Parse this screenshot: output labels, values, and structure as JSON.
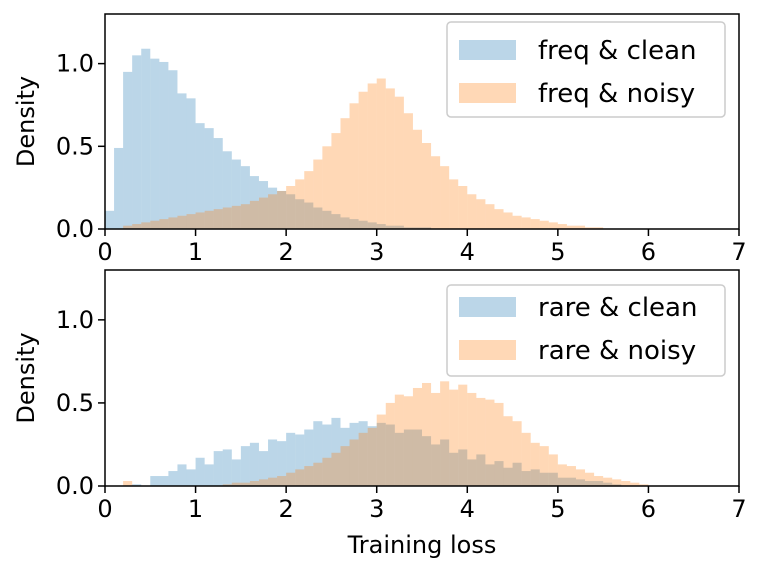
{
  "chart_data": [
    {
      "type": "histogram",
      "ylabel": "Density",
      "xlabel": "",
      "xlim": [
        0,
        7
      ],
      "ylim": [
        0,
        1.3
      ],
      "xticks": [
        "0",
        "1",
        "2",
        "3",
        "4",
        "5",
        "6",
        "7"
      ],
      "yticks": [
        "0.0",
        "0.5",
        "1.0"
      ],
      "bin_width": 0.1,
      "legend_position": "top-right",
      "series": [
        {
          "name": "freq & clean",
          "color": "#1f77b4",
          "x_start": 0.0,
          "values": [
            0.11,
            0.49,
            0.95,
            1.05,
            1.09,
            1.03,
            1.01,
            0.96,
            0.82,
            0.79,
            0.64,
            0.61,
            0.55,
            0.47,
            0.42,
            0.38,
            0.32,
            0.29,
            0.25,
            0.23,
            0.21,
            0.18,
            0.16,
            0.13,
            0.11,
            0.09,
            0.07,
            0.06,
            0.05,
            0.04,
            0.03,
            0.02,
            0.02,
            0.01,
            0.01,
            0.01
          ]
        },
        {
          "name": "freq & noisy",
          "color": "#ff7f0e",
          "x_start": 0.2,
          "values": [
            0.02,
            0.03,
            0.04,
            0.05,
            0.06,
            0.07,
            0.08,
            0.09,
            0.1,
            0.11,
            0.12,
            0.13,
            0.14,
            0.15,
            0.17,
            0.19,
            0.21,
            0.23,
            0.26,
            0.3,
            0.35,
            0.42,
            0.5,
            0.58,
            0.67,
            0.76,
            0.83,
            0.88,
            0.91,
            0.85,
            0.8,
            0.7,
            0.6,
            0.52,
            0.44,
            0.38,
            0.3,
            0.26,
            0.21,
            0.18,
            0.15,
            0.12,
            0.1,
            0.08,
            0.07,
            0.06,
            0.05,
            0.04,
            0.03,
            0.02,
            0.02,
            0.01,
            0.01
          ]
        }
      ]
    },
    {
      "type": "histogram",
      "ylabel": "Density",
      "xlabel": "Training loss",
      "xlim": [
        0,
        7
      ],
      "ylim": [
        0,
        1.3
      ],
      "xticks": [
        "0",
        "1",
        "2",
        "3",
        "4",
        "5",
        "6",
        "7"
      ],
      "yticks": [
        "0.0",
        "0.5",
        "1.0"
      ],
      "bin_width": 0.1,
      "legend_position": "top-right",
      "series": [
        {
          "name": "rare & clean",
          "color": "#1f77b4",
          "x_start": 0.3,
          "values": [
            0.01,
            0.0,
            0.06,
            0.06,
            0.09,
            0.13,
            0.1,
            0.17,
            0.13,
            0.21,
            0.22,
            0.16,
            0.24,
            0.26,
            0.21,
            0.28,
            0.27,
            0.32,
            0.31,
            0.34,
            0.39,
            0.37,
            0.41,
            0.35,
            0.38,
            0.39,
            0.36,
            0.38,
            0.37,
            0.32,
            0.34,
            0.34,
            0.3,
            0.25,
            0.28,
            0.2,
            0.22,
            0.16,
            0.19,
            0.13,
            0.15,
            0.11,
            0.14,
            0.09,
            0.1,
            0.08,
            0.08,
            0.05,
            0.05,
            0.04,
            0.03,
            0.03,
            0.02,
            0.01
          ]
        },
        {
          "name": "rare & noisy",
          "color": "#ff7f0e",
          "x_start": 0.2,
          "values": [
            0.03,
            0.0,
            0.0,
            0.0,
            0.0,
            0.0,
            0.0,
            0.0,
            0.0,
            0.0,
            0.0,
            0.01,
            0.02,
            0.02,
            0.03,
            0.04,
            0.05,
            0.06,
            0.08,
            0.1,
            0.12,
            0.14,
            0.17,
            0.2,
            0.24,
            0.28,
            0.32,
            0.35,
            0.43,
            0.5,
            0.55,
            0.54,
            0.59,
            0.62,
            0.56,
            0.63,
            0.58,
            0.61,
            0.56,
            0.53,
            0.52,
            0.5,
            0.42,
            0.39,
            0.32,
            0.26,
            0.24,
            0.19,
            0.13,
            0.12,
            0.1,
            0.08,
            0.06,
            0.05,
            0.04,
            0.03,
            0.02,
            0.01
          ]
        }
      ]
    }
  ]
}
